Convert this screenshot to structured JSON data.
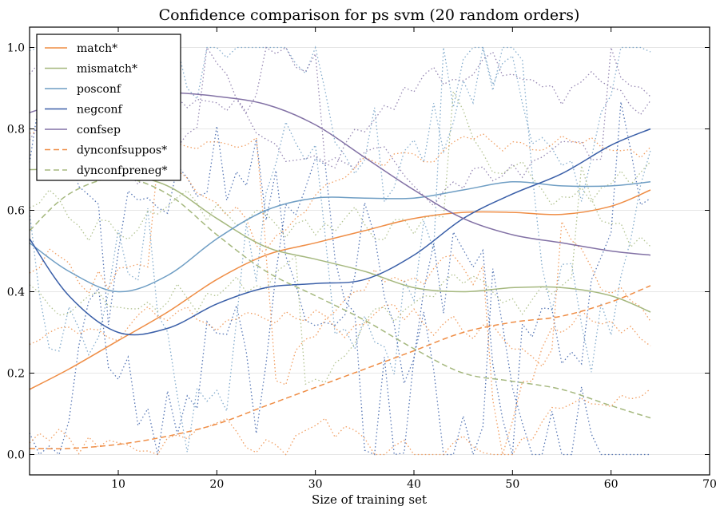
{
  "chart_data": {
    "type": "line",
    "title": "Confidence comparison for ps svm (20 random orders)",
    "xlabel": "Size of training set",
    "ylabel": "",
    "xlim": [
      1,
      70
    ],
    "ylim": [
      -0.05,
      1.05
    ],
    "xticks": [
      10,
      20,
      30,
      40,
      50,
      60,
      70
    ],
    "yticks": [
      0.0,
      0.2,
      0.4,
      0.6,
      0.8,
      1.0
    ],
    "ytick_labels": [
      "0.0",
      "0.2",
      "0.4",
      "0.6",
      "0.8",
      "1.0"
    ],
    "grid": "horizontal",
    "legend_position": "top-left",
    "series": [
      {
        "name": "match*",
        "color": "#ef8d45",
        "style": "solid",
        "x": [
          1,
          5,
          10,
          15,
          20,
          25,
          30,
          35,
          40,
          45,
          50,
          55,
          60,
          64
        ],
        "y": [
          0.16,
          0.21,
          0.28,
          0.35,
          0.43,
          0.49,
          0.52,
          0.55,
          0.58,
          0.595,
          0.595,
          0.59,
          0.61,
          0.65
        ]
      },
      {
        "name": "mismatch*",
        "color": "#a5b87e",
        "style": "solid",
        "x": [
          1,
          5,
          10,
          15,
          20,
          25,
          30,
          35,
          40,
          45,
          50,
          55,
          60,
          64
        ],
        "y": [
          0.7,
          0.7,
          0.69,
          0.66,
          0.58,
          0.51,
          0.48,
          0.45,
          0.41,
          0.4,
          0.41,
          0.41,
          0.39,
          0.35
        ]
      },
      {
        "name": "posconf",
        "color": "#6f9ec4",
        "style": "solid",
        "x": [
          1,
          5,
          10,
          15,
          20,
          25,
          30,
          35,
          40,
          45,
          50,
          55,
          60,
          64
        ],
        "y": [
          0.52,
          0.45,
          0.4,
          0.44,
          0.53,
          0.6,
          0.63,
          0.63,
          0.63,
          0.65,
          0.67,
          0.66,
          0.66,
          0.67
        ]
      },
      {
        "name": "negconf",
        "color": "#3a5fa8",
        "style": "solid",
        "x": [
          1,
          5,
          10,
          15,
          20,
          25,
          30,
          35,
          40,
          45,
          50,
          55,
          60,
          64
        ],
        "y": [
          0.53,
          0.39,
          0.3,
          0.31,
          0.37,
          0.41,
          0.42,
          0.43,
          0.49,
          0.58,
          0.64,
          0.69,
          0.76,
          0.8
        ]
      },
      {
        "name": "confsep",
        "color": "#8271a5",
        "style": "solid",
        "x": [
          1,
          5,
          10,
          15,
          20,
          25,
          30,
          35,
          40,
          45,
          50,
          55,
          60,
          64
        ],
        "y": [
          0.84,
          0.87,
          0.89,
          0.89,
          0.88,
          0.86,
          0.81,
          0.73,
          0.65,
          0.58,
          0.54,
          0.52,
          0.5,
          0.49
        ]
      },
      {
        "name": "dynconfsuppos*",
        "color": "#ef8d45",
        "style": "dashed",
        "x": [
          1,
          5,
          10,
          15,
          20,
          25,
          30,
          35,
          40,
          45,
          50,
          55,
          60,
          64
        ],
        "y": [
          0.015,
          0.015,
          0.025,
          0.045,
          0.075,
          0.12,
          0.165,
          0.21,
          0.255,
          0.3,
          0.325,
          0.34,
          0.375,
          0.415
        ]
      },
      {
        "name": "dynconfpreneg*",
        "color": "#a5b87e",
        "style": "dashed",
        "x": [
          1,
          5,
          10,
          15,
          20,
          25,
          30,
          35,
          40,
          45,
          50,
          55,
          60,
          64
        ],
        "y": [
          0.55,
          0.64,
          0.68,
          0.64,
          0.54,
          0.45,
          0.39,
          0.33,
          0.26,
          0.2,
          0.18,
          0.16,
          0.12,
          0.09
        ]
      }
    ]
  }
}
